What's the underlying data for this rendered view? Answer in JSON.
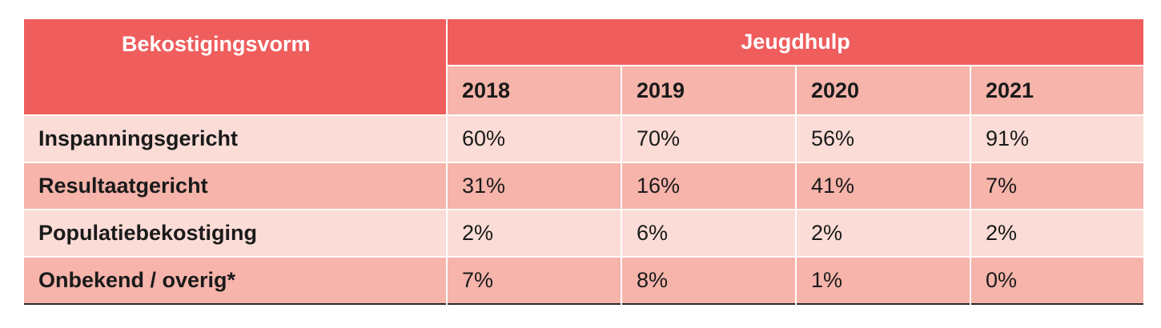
{
  "header": {
    "row_label": "Bekostigingsvorm",
    "group_label": "Jeugdhulp",
    "years": [
      "2018",
      "2019",
      "2020",
      "2021"
    ]
  },
  "rows": [
    {
      "label": "Inspanningsgericht",
      "values": [
        "60%",
        "70%",
        "56%",
        "91%"
      ]
    },
    {
      "label": "Resultaatgericht",
      "values": [
        "31%",
        "16%",
        "41%",
        "7%"
      ]
    },
    {
      "label": "Populatiebekostiging",
      "values": [
        "2%",
        "6%",
        "2%",
        "2%"
      ]
    },
    {
      "label": "Onbekend / overig*",
      "values": [
        "7%",
        "8%",
        "1%",
        "0%"
      ]
    }
  ],
  "colors": {
    "header_red": "#ef5d5d",
    "row_dark": "#f6b4ab",
    "row_light": "#fbdcd6"
  }
}
